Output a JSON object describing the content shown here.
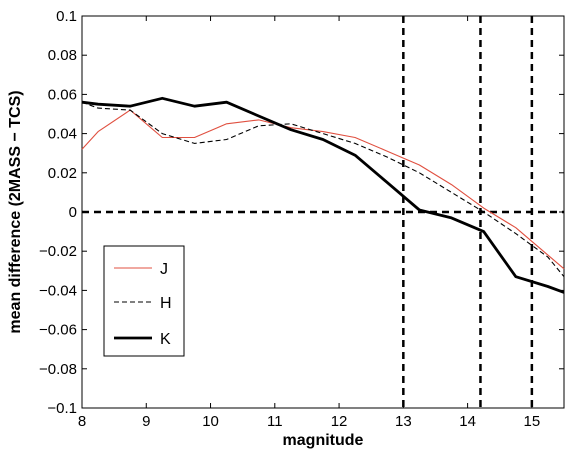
{
  "chart_data": {
    "type": "line",
    "xlabel": "magnitude",
    "ylabel": "mean difference (2MASS − TCS)",
    "xlim": [
      8,
      15.5
    ],
    "ylim": [
      -0.1,
      0.1
    ],
    "xticks": [
      8,
      9,
      10,
      11,
      12,
      13,
      14,
      15
    ],
    "yticks": [
      -0.1,
      -0.08,
      -0.06,
      -0.04,
      -0.02,
      0,
      0.02,
      0.04,
      0.06,
      0.08,
      0.1
    ],
    "xtick_labels": [
      "8",
      "9",
      "10",
      "11",
      "12",
      "13",
      "14",
      "15"
    ],
    "ytick_labels": [
      "−0.1",
      "−0.08",
      "−0.06",
      "−0.04",
      "−0.02",
      "0",
      "0.02",
      "0.04",
      "0.06",
      "0.08",
      "0.1"
    ],
    "grid": false,
    "legend_position": "bottom-left",
    "series": [
      {
        "name": "J",
        "color": "#e05040",
        "style": "solid",
        "width": "thin",
        "points": [
          [
            8.0,
            0.032
          ],
          [
            8.25,
            0.041
          ],
          [
            8.75,
            0.052
          ],
          [
            9.25,
            0.038
          ],
          [
            9.75,
            0.038
          ],
          [
            10.25,
            0.045
          ],
          [
            10.75,
            0.047
          ],
          [
            11.25,
            0.043
          ],
          [
            11.75,
            0.041
          ],
          [
            12.25,
            0.038
          ],
          [
            12.75,
            0.031
          ],
          [
            13.25,
            0.024
          ],
          [
            13.75,
            0.014
          ],
          [
            14.25,
            0.002
          ],
          [
            14.75,
            -0.008
          ],
          [
            15.25,
            -0.022
          ],
          [
            15.5,
            -0.029
          ]
        ]
      },
      {
        "name": "H",
        "color": "#000000",
        "style": "dashed",
        "width": "thin",
        "points": [
          [
            8.0,
            0.056
          ],
          [
            8.25,
            0.053
          ],
          [
            8.75,
            0.052
          ],
          [
            9.25,
            0.04
          ],
          [
            9.75,
            0.035
          ],
          [
            10.25,
            0.037
          ],
          [
            10.75,
            0.044
          ],
          [
            11.25,
            0.045
          ],
          [
            11.75,
            0.04
          ],
          [
            12.25,
            0.035
          ],
          [
            12.75,
            0.028
          ],
          [
            13.25,
            0.02
          ],
          [
            13.75,
            0.01
          ],
          [
            14.25,
            0.0
          ],
          [
            14.75,
            -0.011
          ],
          [
            15.25,
            -0.023
          ],
          [
            15.5,
            -0.033
          ]
        ]
      },
      {
        "name": "K",
        "color": "#000000",
        "style": "solid",
        "width": "thick",
        "points": [
          [
            8.0,
            0.056
          ],
          [
            8.25,
            0.055
          ],
          [
            8.75,
            0.054
          ],
          [
            9.25,
            0.058
          ],
          [
            9.75,
            0.054
          ],
          [
            10.25,
            0.056
          ],
          [
            10.75,
            0.049
          ],
          [
            11.25,
            0.042
          ],
          [
            11.75,
            0.037
          ],
          [
            12.25,
            0.029
          ],
          [
            12.75,
            0.015
          ],
          [
            13.25,
            0.001
          ],
          [
            13.75,
            -0.003
          ],
          [
            14.25,
            -0.01
          ],
          [
            14.75,
            -0.033
          ],
          [
            15.25,
            -0.038
          ],
          [
            15.5,
            -0.041
          ]
        ]
      }
    ],
    "reference_lines": {
      "horizontal_y": [
        0
      ],
      "vertical_x": [
        13.0,
        14.2,
        15.0
      ],
      "style": "thick dashed black"
    }
  }
}
